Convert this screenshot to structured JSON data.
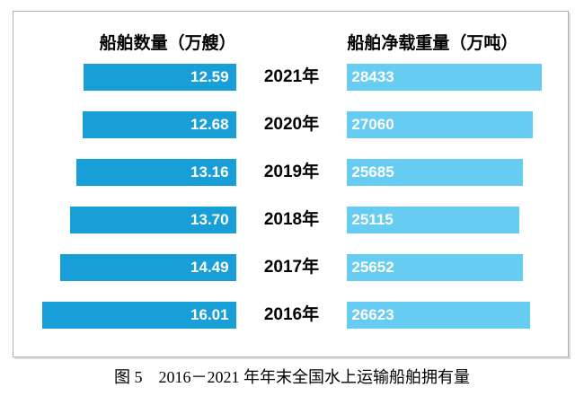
{
  "figure": {
    "caption": "图 5　2016－2021 年年末全国水上运输船舶拥有量"
  },
  "chart_data": {
    "type": "bar",
    "variant": "butterfly",
    "orientation": "horizontal",
    "grid": false,
    "legend_position": "top-headers",
    "categories": [
      "2021年",
      "2020年",
      "2019年",
      "2018年",
      "2017年",
      "2016年"
    ],
    "series": [
      {
        "name": "船舶数量（万艘）",
        "side": "left",
        "color": "#189fd8",
        "values": [
          12.59,
          12.68,
          13.16,
          13.7,
          14.49,
          16.01
        ],
        "labels": [
          "12.59",
          "12.68",
          "13.16",
          "13.70",
          "14.49",
          "16.01"
        ]
      },
      {
        "name": "船舶净载重量（万吨）",
        "side": "right",
        "color": "#66ccf2",
        "values": [
          28433,
          27060,
          25685,
          25115,
          25652,
          26623
        ],
        "labels": [
          "28433",
          "27060",
          "25685",
          "25115",
          "25652",
          "26623"
        ]
      }
    ],
    "value_label_color": "#ffffff",
    "axis_label_color": "#000000"
  }
}
